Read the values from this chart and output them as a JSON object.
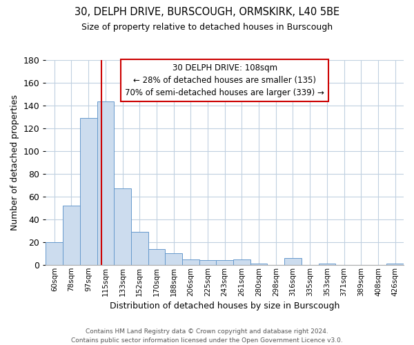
{
  "title": "30, DELPH DRIVE, BURSCOUGH, ORMSKIRK, L40 5BE",
  "subtitle": "Size of property relative to detached houses in Burscough",
  "xlabel": "Distribution of detached houses by size in Burscough",
  "ylabel": "Number of detached properties",
  "categories": [
    "60sqm",
    "78sqm",
    "97sqm",
    "115sqm",
    "133sqm",
    "152sqm",
    "170sqm",
    "188sqm",
    "206sqm",
    "225sqm",
    "243sqm",
    "261sqm",
    "280sqm",
    "298sqm",
    "316sqm",
    "335sqm",
    "353sqm",
    "371sqm",
    "389sqm",
    "408sqm",
    "426sqm"
  ],
  "values": [
    20,
    52,
    129,
    144,
    67,
    29,
    14,
    10,
    5,
    4,
    4,
    5,
    1,
    0,
    6,
    0,
    1,
    0,
    0,
    0,
    1
  ],
  "bar_color": "#ccdcee",
  "bar_edge_color": "#6699cc",
  "vline_color": "#cc0000",
  "ylim": [
    0,
    180
  ],
  "yticks": [
    0,
    20,
    40,
    60,
    80,
    100,
    120,
    140,
    160,
    180
  ],
  "annotation_line1": "30 DELPH DRIVE: 108sqm",
  "annotation_line2": "← 28% of detached houses are smaller (135)",
  "annotation_line3": "70% of semi-detached houses are larger (339) →",
  "annotation_box_color": "#ffffff",
  "annotation_box_edge_color": "#cc0000",
  "footer1": "Contains HM Land Registry data © Crown copyright and database right 2024.",
  "footer2": "Contains public sector information licensed under the Open Government Licence v3.0.",
  "background_color": "#ffffff",
  "grid_color": "#c0d0e0",
  "vline_index": 2.78
}
